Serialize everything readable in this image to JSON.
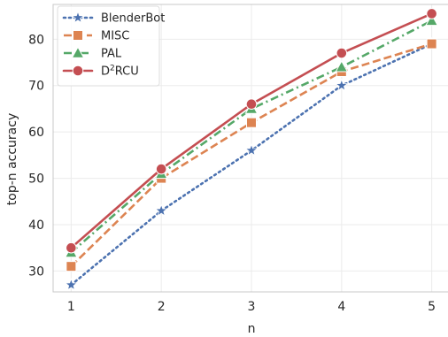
{
  "chart_data": {
    "type": "line",
    "x": [
      1,
      2,
      3,
      4,
      5
    ],
    "xlabel": "n",
    "ylabel": "top-n accuracy",
    "xlim": [
      0.8,
      5.2
    ],
    "ylim": [
      25.5,
      87.5
    ],
    "xticks": [
      "1",
      "2",
      "3",
      "4",
      "5"
    ],
    "yticks": [
      "30",
      "40",
      "50",
      "60",
      "70",
      "80"
    ],
    "grid": true,
    "legend_position": "top-left",
    "series": [
      {
        "name": "BlenderBot",
        "name_base": "BlenderBot",
        "name_sup": "",
        "name_rest": "",
        "values": [
          27,
          43,
          56,
          70,
          79
        ],
        "color": "#4c72b0",
        "line_style": "dotted",
        "marker": "star"
      },
      {
        "name": "MISC",
        "name_base": "MISC",
        "name_sup": "",
        "name_rest": "",
        "values": [
          31,
          50,
          62,
          73,
          79
        ],
        "color": "#dd8452",
        "line_style": "dashed",
        "marker": "square"
      },
      {
        "name": "PAL",
        "name_base": "PAL",
        "name_sup": "",
        "name_rest": "",
        "values": [
          34,
          51,
          65,
          74,
          84
        ],
        "color": "#55a868",
        "line_style": "dashdot",
        "marker": "triangle"
      },
      {
        "name": "D2RCU",
        "name_base": "D",
        "name_sup": "2",
        "name_rest": "RCU",
        "values": [
          35,
          52,
          66,
          77,
          85.5
        ],
        "color": "#c44e52",
        "line_style": "solid",
        "marker": "circle"
      }
    ]
  }
}
